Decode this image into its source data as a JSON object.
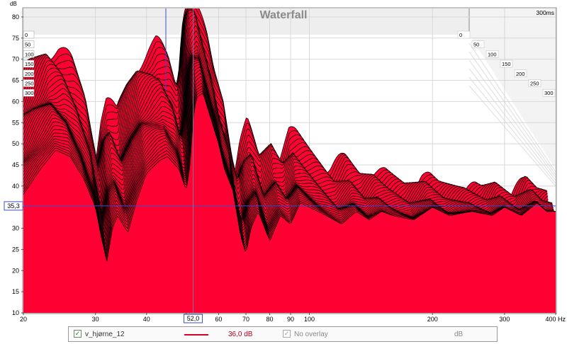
{
  "chart_data": {
    "type": "area",
    "title": "Waterfall",
    "ylabel": "dB",
    "xunit": "Hz",
    "xscale": "log",
    "xlim": [
      20,
      400
    ],
    "ylim": [
      10,
      82
    ],
    "xticks": [
      20,
      30,
      40,
      50,
      60,
      70,
      80,
      90,
      100,
      200,
      300,
      400
    ],
    "xtick_labels": [
      "20",
      "30",
      "40",
      "",
      "60",
      "70",
      "80",
      "90",
      "100",
      "200",
      "300",
      "400 Hz"
    ],
    "yticks": [
      10,
      15,
      20,
      25,
      30,
      35,
      40,
      45,
      50,
      55,
      60,
      65,
      70,
      75,
      80
    ],
    "time_range_label": "300ms",
    "time_labels": [
      "0",
      "50",
      "100",
      "150",
      "200",
      "250",
      "300"
    ],
    "time_ms": [
      0,
      50,
      100,
      150,
      200,
      250,
      300
    ],
    "cursor": {
      "x_label": "52,0",
      "y_label": "35,3",
      "x": 52.0,
      "y": 35.3
    },
    "fill_color": "#ff0033",
    "contour_color": "#000000",
    "slices": 40,
    "front_slice": {
      "x": [
        20,
        22,
        24,
        26,
        28,
        30,
        31,
        32,
        33,
        34,
        36,
        38,
        40,
        43,
        45,
        48,
        50,
        51,
        52,
        53,
        55,
        57,
        60,
        62,
        65,
        68,
        70,
        72,
        75,
        80,
        85,
        90,
        95,
        100,
        110,
        120,
        130,
        140,
        150,
        160,
        180,
        200,
        220,
        250,
        280,
        300,
        330,
        360,
        380,
        400
      ],
      "y": [
        38,
        44,
        48.5,
        47,
        42,
        35,
        28,
        22,
        30,
        33,
        29,
        37,
        43,
        46,
        47,
        44,
        39,
        44,
        56,
        61,
        62,
        57,
        50,
        44,
        39,
        28,
        24,
        30,
        34,
        27,
        33,
        31,
        36,
        35,
        33,
        31,
        34,
        32,
        34,
        33,
        32,
        35,
        33,
        34,
        33,
        35,
        33,
        36,
        34,
        34
      ]
    }
  },
  "legend": {
    "series_name": "v_hjørne_12",
    "series_value": "36,0 dB",
    "overlay_label": "No overlay",
    "overlay_value": "dB",
    "series_color": "#d6002c"
  }
}
